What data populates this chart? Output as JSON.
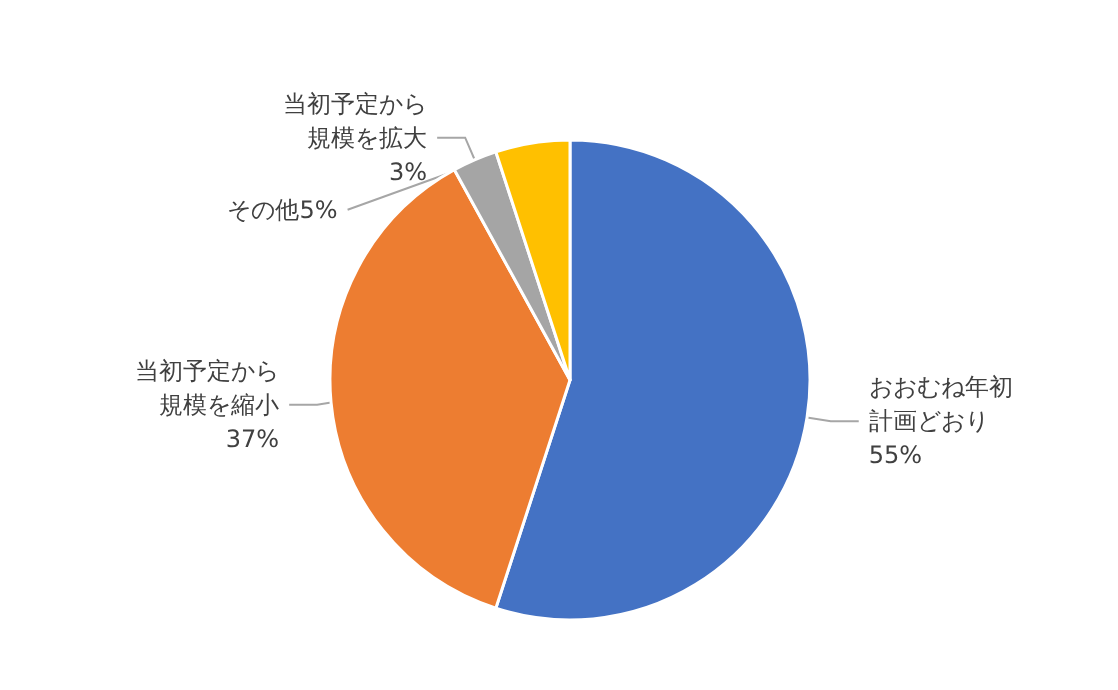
{
  "chart_data": {
    "type": "pie",
    "categories": [
      "おおむね年初計画どおり",
      "当初予定から規模を縮小",
      "当初予定から規模を拡大",
      "その他"
    ],
    "values": [
      55,
      37,
      3,
      5
    ],
    "value_labels": [
      "55%",
      "37%",
      "3%",
      "5%"
    ],
    "colors": [
      "#4472c4",
      "#ed7d31",
      "#a5a5a5",
      "#ffc000"
    ]
  }
}
